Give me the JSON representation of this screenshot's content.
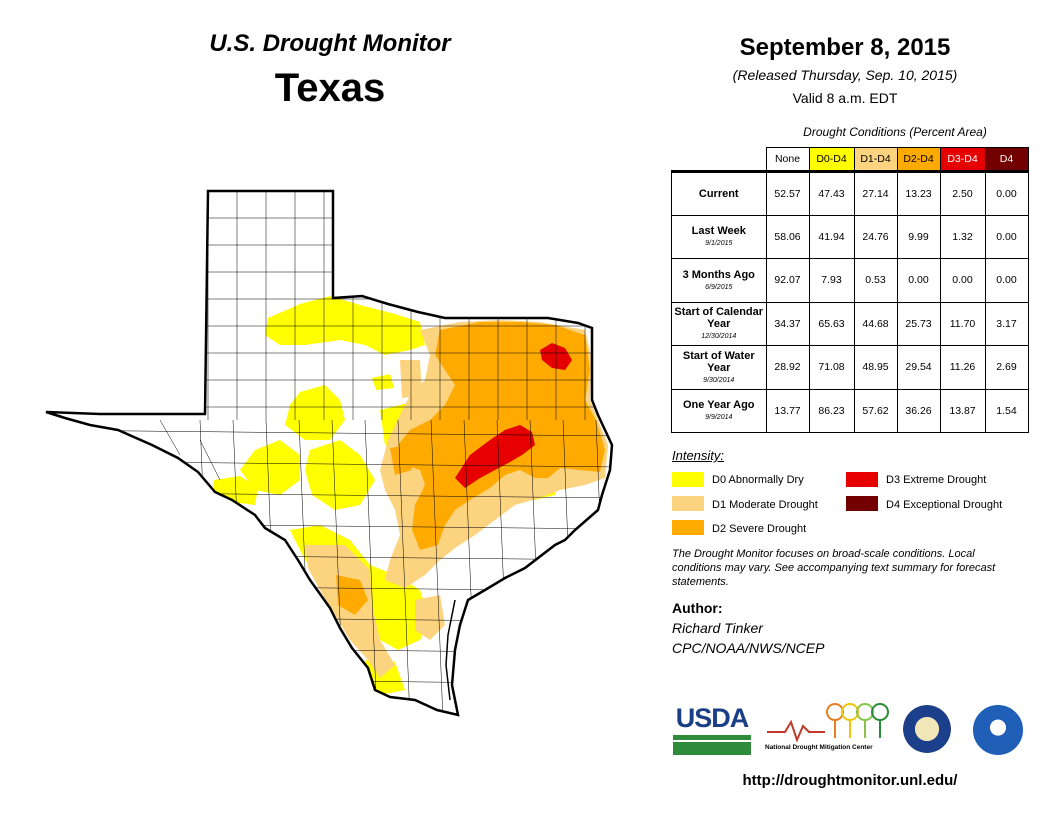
{
  "header": {
    "brand": "U.S. Drought Monitor",
    "state": "Texas",
    "date": "September 8, 2015",
    "released": "(Released Thursday, Sep. 10, 2015)",
    "valid": "Valid 8 a.m. EDT"
  },
  "stats_table": {
    "caption": "Drought Conditions (Percent Area)",
    "columns": [
      "None",
      "D0-D4",
      "D1-D4",
      "D2-D4",
      "D3-D4",
      "D4"
    ],
    "rows": [
      {
        "label": "Current",
        "sublabel": "",
        "values": [
          "52.57",
          "47.43",
          "27.14",
          "13.23",
          "2.50",
          "0.00"
        ]
      },
      {
        "label": "Last Week",
        "sublabel": "9/1/2015",
        "values": [
          "58.06",
          "41.94",
          "24.76",
          "9.99",
          "1.32",
          "0.00"
        ]
      },
      {
        "label": "3 Months Ago",
        "sublabel": "6/9/2015",
        "values": [
          "92.07",
          "7.93",
          "0.53",
          "0.00",
          "0.00",
          "0.00"
        ]
      },
      {
        "label": "Start of Calendar Year",
        "sublabel": "12/30/2014",
        "values": [
          "34.37",
          "65.63",
          "44.68",
          "25.73",
          "11.70",
          "3.17"
        ]
      },
      {
        "label": "Start of Water Year",
        "sublabel": "9/30/2014",
        "values": [
          "28.92",
          "71.08",
          "48.95",
          "29.54",
          "11.26",
          "2.69"
        ]
      },
      {
        "label": "One Year Ago",
        "sublabel": "9/9/2014",
        "values": [
          "13.77",
          "86.23",
          "57.62",
          "36.26",
          "13.87",
          "1.54"
        ]
      }
    ]
  },
  "legend": {
    "title": "Intensity:",
    "items": [
      {
        "label": "D0 Abnormally Dry",
        "color": "#ffff00"
      },
      {
        "label": "D1 Moderate Drought",
        "color": "#fcd37f"
      },
      {
        "label": "D2 Severe Drought",
        "color": "#ffaa00"
      },
      {
        "label": "D3 Extreme Drought",
        "color": "#e60000"
      },
      {
        "label": "D4 Exceptional Drought",
        "color": "#730000"
      }
    ]
  },
  "disclaimer": "The Drought Monitor focuses on broad-scale conditions. Local conditions may vary. See accompanying text summary for forecast statements.",
  "author": {
    "heading": "Author:",
    "name": "Richard Tinker",
    "org": "CPC/NOAA/NWS/NCEP"
  },
  "logos": {
    "usda": "USDA",
    "ndmc": "National Drought Mitigation Center"
  },
  "url": "http://droughtmonitor.unl.edu/"
}
